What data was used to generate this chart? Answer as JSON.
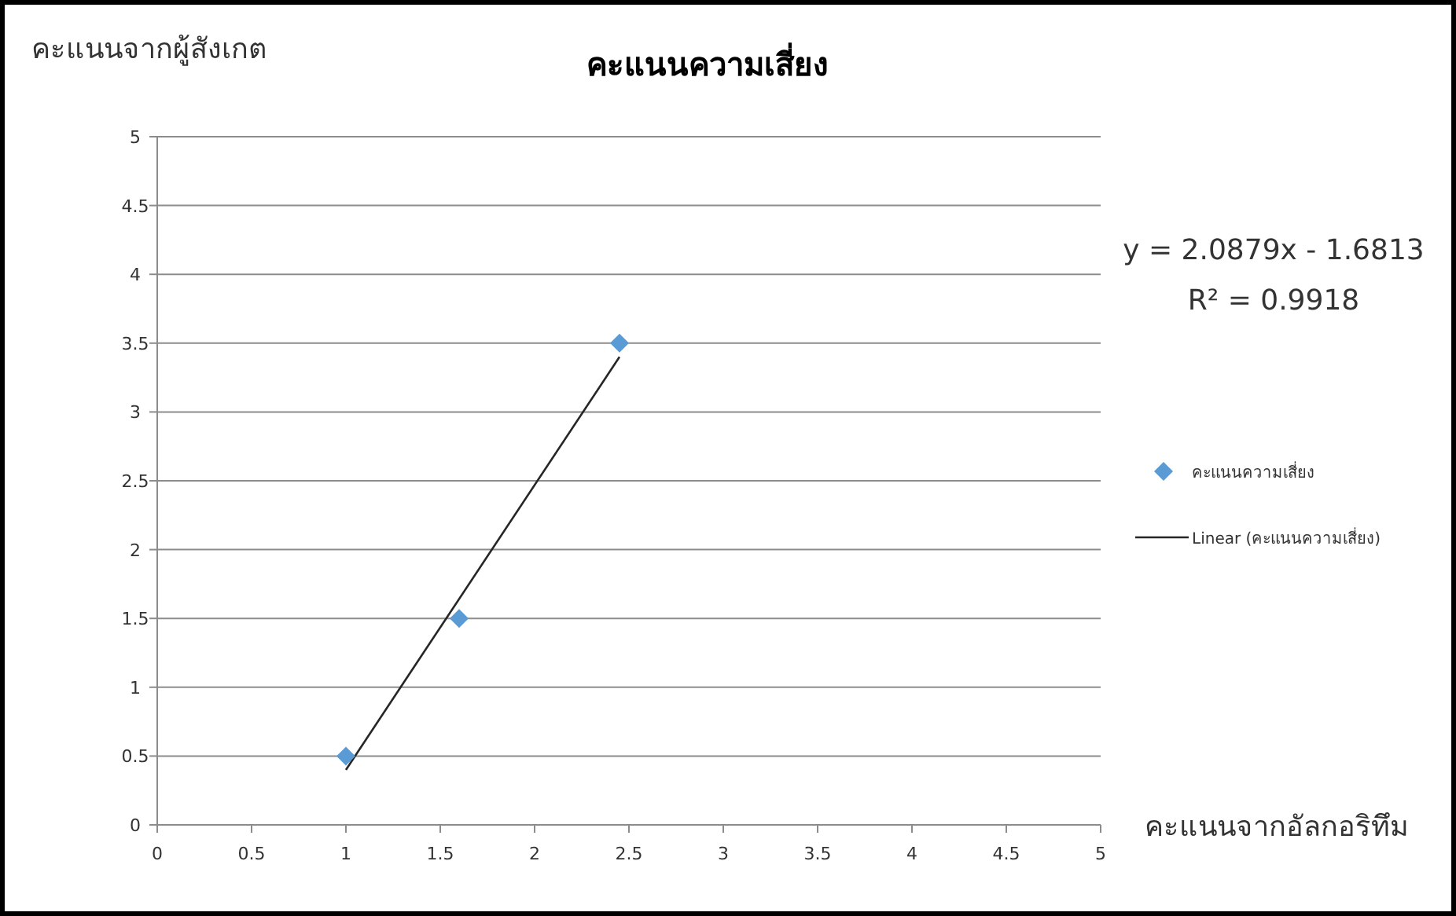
{
  "chart_data": {
    "type": "scatter",
    "title": "คะแนนความเสี่ยง",
    "xlabel": "คะแนนจากอัลกอริทึม",
    "ylabel": "คะแนนจากผู้สังเกต",
    "series": [
      {
        "name": "คะแนนความเสี่ยง",
        "type": "scatter",
        "color": "#5b9bd5",
        "marker": "diamond",
        "x": [
          1,
          1.6,
          2.45
        ],
        "values": [
          0.5,
          1.5,
          3.5
        ]
      },
      {
        "name": "Linear (คะแนนความเสี่ยง)",
        "type": "line",
        "color": "#262626",
        "marker": "none",
        "x": [
          1,
          2.45
        ],
        "values": [
          0.4,
          3.4
        ]
      }
    ],
    "xlim": [
      0,
      5
    ],
    "ylim": [
      0,
      5
    ],
    "xticks": [
      0,
      0.5,
      1,
      1.5,
      2,
      2.5,
      3,
      3.5,
      4,
      4.5,
      5
    ],
    "yticks": [
      0,
      0.5,
      1,
      1.5,
      2,
      2.5,
      3,
      3.5,
      4,
      4.5,
      5
    ],
    "grid": "y",
    "legend": "right",
    "annotations": [
      "y = 2.0879x - 1.6813",
      "R² = 0.9918"
    ]
  }
}
